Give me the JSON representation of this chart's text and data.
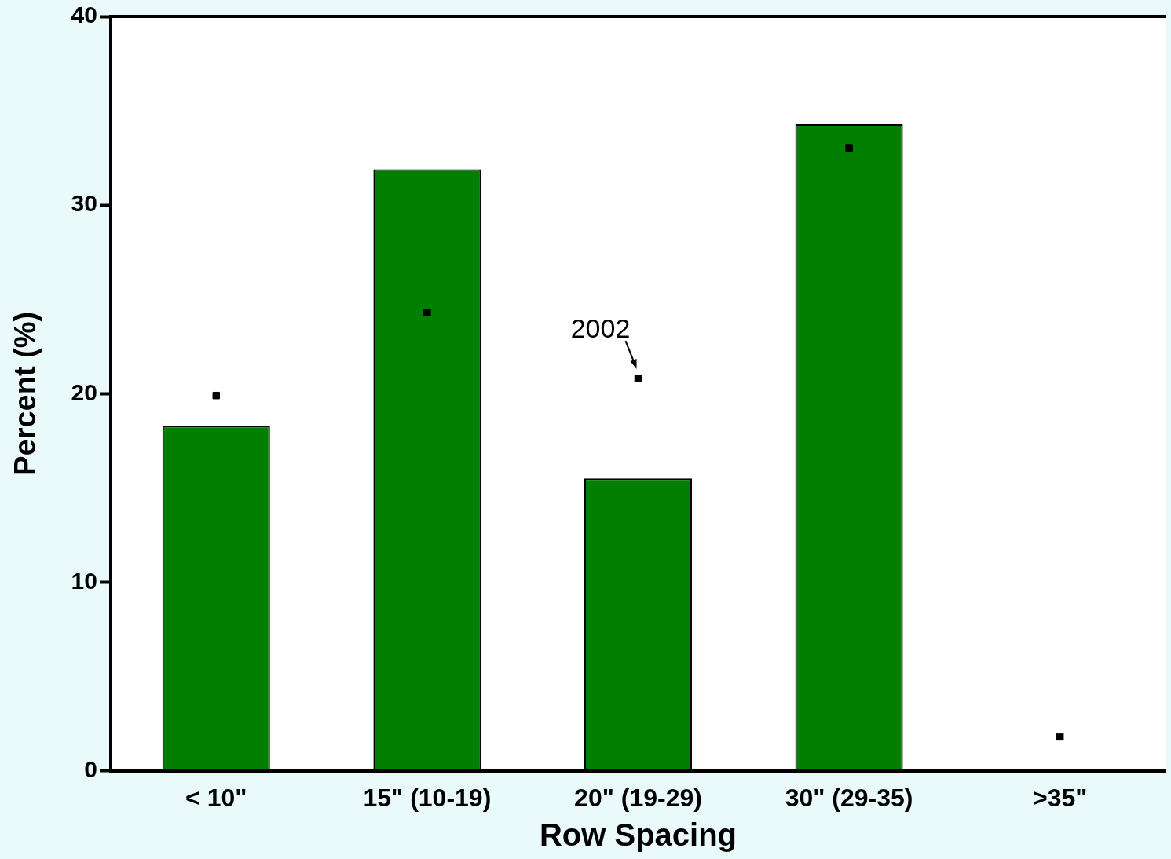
{
  "chart_data": {
    "type": "bar",
    "xlabel": "Row Spacing",
    "ylabel": "Percent (%)",
    "categories": [
      "< 10\"",
      "15\" (10-19)",
      "20\" (19-29)",
      "30\" (29-35)",
      ">35\""
    ],
    "series": [
      {
        "color": "#007f00",
        "values": [
          18.3,
          31.9,
          15.5,
          34.3,
          0
        ]
      },
      {
        "type": "scatter",
        "name": "2002",
        "color": "#000000",
        "marker": "square",
        "values": [
          19.9,
          24.3,
          20.8,
          33.0,
          1.8
        ]
      }
    ],
    "ylim": [
      0,
      40
    ],
    "yticks": [
      0,
      10,
      20,
      30,
      40
    ],
    "grid": false,
    "legend": false
  }
}
